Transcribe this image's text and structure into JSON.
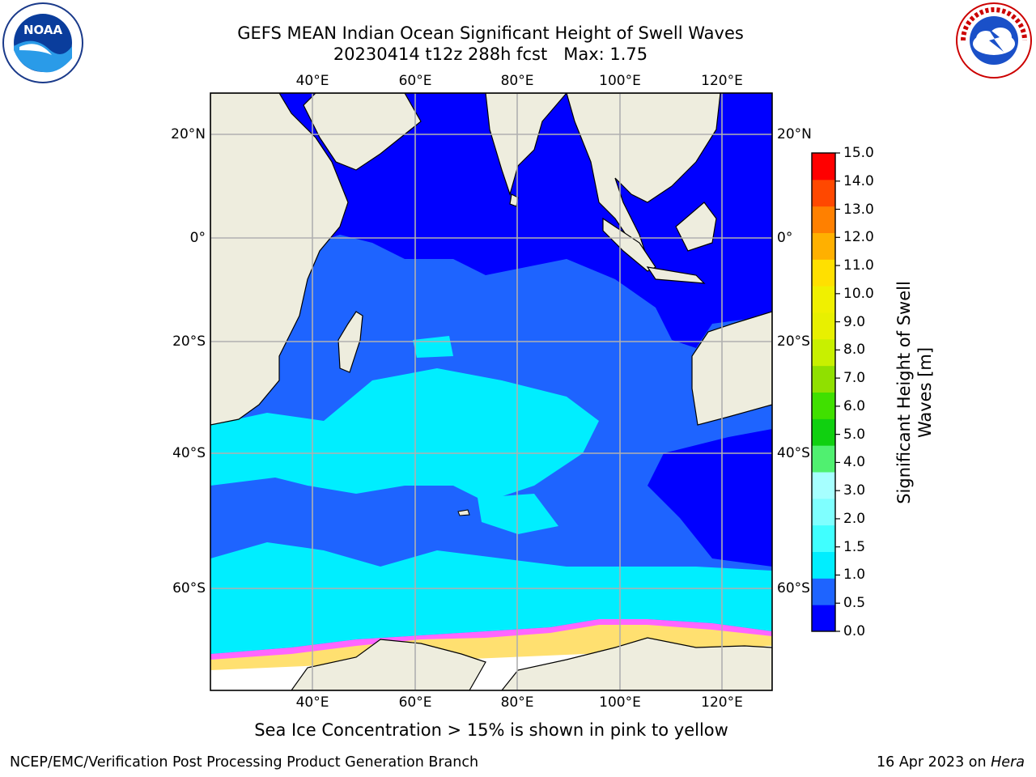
{
  "header": {
    "title_line1": "GEFS MEAN Indian Ocean Significant Height of Swell Waves",
    "title_line2": "20230414 t12z 288h fcst   Max: 1.75"
  },
  "logos": {
    "left": {
      "name": "noaa-logo",
      "text": "NOAA"
    },
    "right": {
      "name": "nws-logo",
      "text": "NATIONAL WEATHER SERVICE"
    }
  },
  "map": {
    "lon_ticks_top": [
      "40°E",
      "60°E",
      "80°E",
      "100°E",
      "120°E"
    ],
    "lon_ticks_bottom": [
      "40°E",
      "60°E",
      "80°E",
      "100°E",
      "120°E"
    ],
    "lat_ticks_left": [
      "20°N",
      "0°",
      "20°S",
      "40°S",
      "60°S"
    ],
    "lat_ticks_right": [
      "20°N",
      "0°",
      "20°S",
      "40°S",
      "60°S"
    ],
    "colors": {
      "land": "#eeedde",
      "coast": "#000000",
      "grid": "#b0b0b0"
    }
  },
  "colorbar": {
    "title_line1": "Significant Height of Swell",
    "title_line2": "Waves [m]",
    "labels": [
      "0.0",
      "0.5",
      "1.0",
      "1.5",
      "2.0",
      "3.0",
      "4.0",
      "5.0",
      "6.0",
      "7.0",
      "8.0",
      "9.0",
      "10.0",
      "11.0",
      "12.0",
      "13.0",
      "14.0",
      "15.0"
    ],
    "colors": [
      "#0000ff",
      "#1e64ff",
      "#00eeff",
      "#40ffff",
      "#7fffff",
      "#a6ffff",
      "#50f070",
      "#10d010",
      "#40e000",
      "#90e000",
      "#c8f000",
      "#e8f000",
      "#f0f000",
      "#ffe000",
      "#ffb000",
      "#ff8000",
      "#ff4800",
      "#ff0000"
    ]
  },
  "sea_ice_note": "Sea Ice Concentration > 15% is shown in pink to yellow",
  "footer": {
    "left": "NCEP/EMC/Verification Post Processing Product Generation Branch",
    "right_date": "16 Apr 2023 on ",
    "right_machine": "Hera"
  }
}
